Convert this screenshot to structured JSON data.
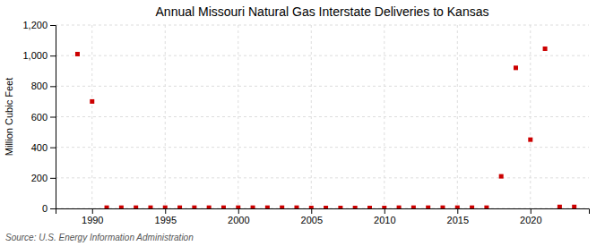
{
  "chart_data": {
    "type": "scatter",
    "title": "Annual Missouri Natural Gas Interstate Deliveries to Kansas",
    "ylabel": "Million Cubic Feet",
    "annotations": [
      "Source: U.S. Energy Information Administration"
    ],
    "x": [
      1989,
      1990,
      1991,
      1992,
      1993,
      1994,
      1995,
      1996,
      1997,
      1998,
      1999,
      2000,
      2001,
      2002,
      2003,
      2004,
      2005,
      2006,
      2007,
      2008,
      2009,
      2010,
      2011,
      2012,
      2013,
      2014,
      2015,
      2016,
      2017,
      2018,
      2019,
      2020,
      2021,
      2022,
      2023
    ],
    "values": [
      1010,
      700,
      5,
      5,
      5,
      5,
      5,
      5,
      5,
      5,
      5,
      5,
      5,
      5,
      5,
      5,
      3,
      3,
      3,
      3,
      3,
      3,
      5,
      5,
      5,
      5,
      5,
      5,
      5,
      210,
      920,
      450,
      1045,
      10,
      10
    ],
    "color": "#cc0000",
    "marker": "square",
    "grid": true,
    "xlim": [
      1987.5,
      2024
    ],
    "xticks": [
      1990,
      1995,
      2000,
      2005,
      2010,
      2015,
      2020
    ],
    "ylim": [
      0,
      1200
    ],
    "yticks": [
      0,
      200,
      400,
      600,
      800,
      {
        "value": 1000,
        "label": "1,000"
      },
      {
        "value": 1200,
        "label": "1,200"
      }
    ]
  }
}
